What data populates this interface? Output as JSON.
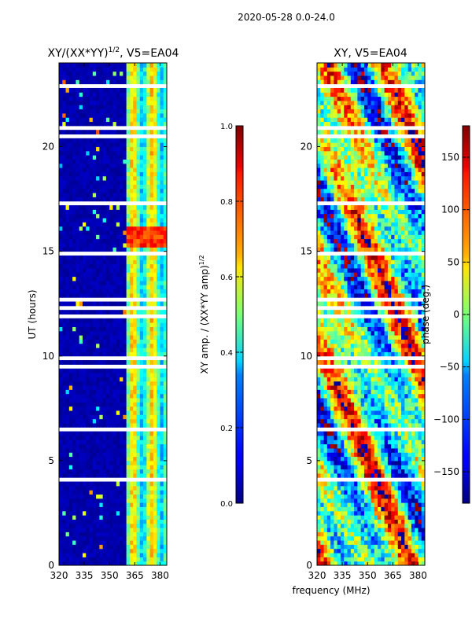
{
  "figure": {
    "suptitle": "2020-05-28 0.0-24.0",
    "shared_xlabel": "frequency (MHz)"
  },
  "chart_data": [
    {
      "type": "heatmap",
      "title_main": "XY/(XX*YY)",
      "title_sup": "1/2",
      "title_rest": ", V5=EA04",
      "ylabel": "UT (hours)",
      "xlim": [
        320,
        384
      ],
      "ylim": [
        0,
        24
      ],
      "xticks": [
        320,
        335,
        350,
        365,
        380
      ],
      "yticks": [
        0,
        5,
        10,
        15,
        20
      ],
      "colormap": "jet",
      "colorbar": {
        "label_main": "XY amp. / (XX*YY amp)",
        "label_sup": "1/2",
        "min": 0.0,
        "max": 1.0,
        "ticks": [
          "0.0",
          "0.2",
          "0.4",
          "0.6",
          "0.8",
          "1.0"
        ]
      },
      "band_structure": {
        "low_band_end_mhz": 361,
        "note": "low values below ~361 MHz, striped 0.3-0.7 columns above"
      }
    },
    {
      "type": "heatmap",
      "title": "XY, V5=EA04",
      "xlim": [
        320,
        384
      ],
      "ylim": [
        0,
        24
      ],
      "xticks": [
        320,
        335,
        350,
        365,
        380
      ],
      "yticks": [
        0,
        5,
        10,
        15,
        20
      ],
      "colormap": "jet",
      "colorbar": {
        "label": "phase (deg.)",
        "min": -180,
        "max": 180,
        "ticks": [
          "−150",
          "−100",
          "−50",
          "0",
          "50",
          "100",
          "150"
        ]
      }
    }
  ],
  "colors": {
    "jet_low": "#00007f",
    "jet_high": "#7f0000",
    "gap": "#ffffff"
  }
}
